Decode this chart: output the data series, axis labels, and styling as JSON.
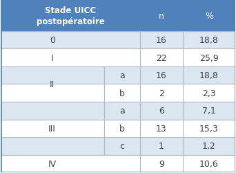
{
  "title_line1": "Stade UICC",
  "title_line2": "postopératoire",
  "col_headers": [
    "n",
    "%"
  ],
  "header_bg": "#4f81bd",
  "header_text_color": "#ffffff",
  "rows": [
    {
      "col1": "0",
      "col1b": "",
      "n": "16",
      "pct": "18,8",
      "bg": "#dce6f1"
    },
    {
      "col1": "I",
      "col1b": "",
      "n": "22",
      "pct": "25,9",
      "bg": "#ffffff"
    },
    {
      "col1": "II",
      "col1b": "a",
      "n": "16",
      "pct": "18,8",
      "bg": "#dce6f1"
    },
    {
      "col1": "",
      "col1b": "b",
      "n": "2",
      "pct": "2,3",
      "bg": "#ffffff"
    },
    {
      "col1": "III",
      "col1b": "a",
      "n": "6",
      "pct": "7,1",
      "bg": "#dce6f1"
    },
    {
      "col1": "",
      "col1b": "b",
      "n": "13",
      "pct": "15,3",
      "bg": "#ffffff"
    },
    {
      "col1": "",
      "col1b": "c",
      "n": "1",
      "pct": "1,2",
      "bg": "#dce6f1"
    },
    {
      "col1": "IV",
      "col1b": "",
      "n": "9",
      "pct": "10,6",
      "bg": "#ffffff"
    }
  ],
  "text_color": "#404040",
  "figsize": [
    3.42,
    2.51
  ],
  "dpi": 100,
  "outer_border_color": "#4f81bd",
  "grid_color": "#b0b8c8"
}
